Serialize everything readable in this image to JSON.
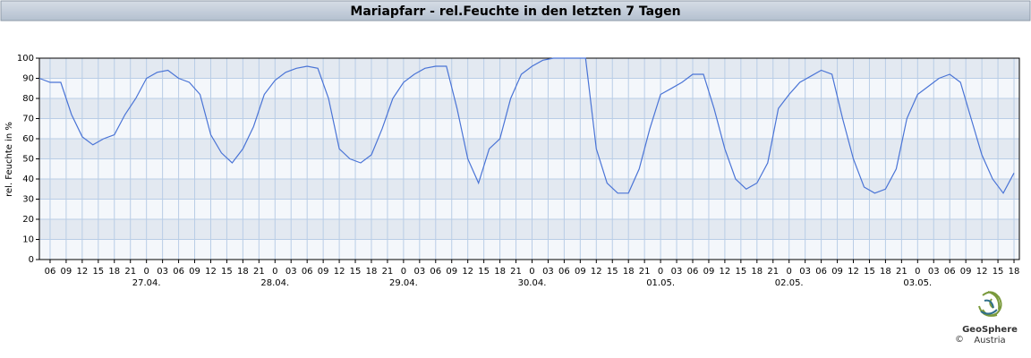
{
  "chart_data": {
    "type": "line",
    "title": "Mariapfarr - rel.Feuchte in den letzten 7 Tagen",
    "y_label": "rel. Feuchte in %",
    "x": [
      "26.04. 04:00",
      "26.04. 06:00",
      "26.04. 08:00",
      "26.04. 10:00",
      "26.04. 12:00",
      "26.04. 14:00",
      "26.04. 16:00",
      "26.04. 18:00",
      "26.04. 20:00",
      "26.04. 22:00",
      "27.04. 00:00",
      "27.04. 02:00",
      "27.04. 04:00",
      "27.04. 06:00",
      "27.04. 08:00",
      "27.04. 10:00",
      "27.04. 12:00",
      "27.04. 14:00",
      "27.04. 16:00",
      "27.04. 18:00",
      "27.04. 20:00",
      "27.04. 22:00",
      "28.04. 00:00",
      "28.04. 02:00",
      "28.04. 04:00",
      "28.04. 06:00",
      "28.04. 08:00",
      "28.04. 10:00",
      "28.04. 12:00",
      "28.04. 14:00",
      "28.04. 16:00",
      "28.04. 18:00",
      "28.04. 20:00",
      "28.04. 22:00",
      "29.04. 00:00",
      "29.04. 02:00",
      "29.04. 04:00",
      "29.04. 06:00",
      "29.04. 08:00",
      "29.04. 10:00",
      "29.04. 12:00",
      "29.04. 14:00",
      "29.04. 16:00",
      "29.04. 18:00",
      "29.04. 20:00",
      "29.04. 22:00",
      "30.04. 00:00",
      "30.04. 02:00",
      "30.04. 04:00",
      "30.04. 06:00",
      "30.04. 08:00",
      "30.04. 10:00",
      "30.04. 12:00",
      "30.04. 14:00",
      "30.04. 16:00",
      "30.04. 18:00",
      "30.04. 20:00",
      "30.04. 22:00",
      "01.05. 00:00",
      "01.05. 02:00",
      "01.05. 04:00",
      "01.05. 06:00",
      "01.05. 08:00",
      "01.05. 10:00",
      "01.05. 12:00",
      "01.05. 14:00",
      "01.05. 16:00",
      "01.05. 18:00",
      "01.05. 20:00",
      "01.05. 22:00",
      "02.05. 00:00",
      "02.05. 02:00",
      "02.05. 04:00",
      "02.05. 06:00",
      "02.05. 08:00",
      "02.05. 10:00",
      "02.05. 12:00",
      "02.05. 14:00",
      "02.05. 16:00",
      "02.05. 18:00",
      "02.05. 20:00",
      "02.05. 22:00",
      "03.05. 00:00",
      "03.05. 02:00",
      "03.05. 04:00",
      "03.05. 06:00",
      "03.05. 08:00",
      "03.05. 10:00",
      "03.05. 12:00",
      "03.05. 14:00",
      "03.05. 16:00",
      "03.05. 18:00"
    ],
    "series": [
      {
        "color": "#4a74d6",
        "values": [
          90,
          88,
          88,
          72,
          61,
          57,
          60,
          62,
          72,
          80,
          90,
          93,
          94,
          90,
          88,
          82,
          62,
          53,
          48,
          55,
          66,
          82,
          89,
          93,
          95,
          96,
          95,
          80,
          55,
          50,
          48,
          52,
          65,
          80,
          88,
          92,
          95,
          96,
          96,
          75,
          50,
          38,
          55,
          60,
          80,
          92,
          96,
          99,
          100,
          100,
          100,
          100,
          55,
          38,
          33,
          33,
          45,
          65,
          82,
          85,
          88,
          92,
          92,
          75,
          55,
          40,
          35,
          38,
          48,
          75,
          82,
          88,
          91,
          94,
          92,
          70,
          50,
          36,
          33,
          35,
          45,
          70,
          82,
          86,
          90,
          92,
          88,
          70,
          52,
          40,
          33,
          43
        ]
      }
    ],
    "xlim": [
      "26.04. 04:00",
      "03.05. 19:00"
    ],
    "ylim": [
      0,
      100
    ],
    "yticks": [
      0,
      10,
      20,
      30,
      40,
      50,
      60,
      70,
      80,
      90,
      100
    ],
    "grid": true,
    "xticks": [
      {
        "value": "26.04. 06:00",
        "label": "06"
      },
      {
        "value": "26.04. 09:00",
        "label": "09"
      },
      {
        "value": "26.04. 12:00",
        "label": "12"
      },
      {
        "value": "26.04. 15:00",
        "label": "15"
      },
      {
        "value": "26.04. 18:00",
        "label": "18"
      },
      {
        "value": "26.04. 21:00",
        "label": "21"
      },
      {
        "value": "27.04. 00:00",
        "label": "0"
      },
      {
        "value": "27.04. 03:00",
        "label": "03"
      },
      {
        "value": "27.04. 06:00",
        "label": "06"
      },
      {
        "value": "27.04. 09:00",
        "label": "09"
      },
      {
        "value": "27.04. 12:00",
        "label": "12"
      },
      {
        "value": "27.04. 15:00",
        "label": "15"
      },
      {
        "value": "27.04. 18:00",
        "label": "18"
      },
      {
        "value": "27.04. 21:00",
        "label": "21"
      },
      {
        "value": "28.04. 00:00",
        "label": "0"
      },
      {
        "value": "28.04. 03:00",
        "label": "03"
      },
      {
        "value": "28.04. 06:00",
        "label": "06"
      },
      {
        "value": "28.04. 09:00",
        "label": "09"
      },
      {
        "value": "28.04. 12:00",
        "label": "12"
      },
      {
        "value": "28.04. 15:00",
        "label": "15"
      },
      {
        "value": "28.04. 18:00",
        "label": "18"
      },
      {
        "value": "28.04. 21:00",
        "label": "21"
      },
      {
        "value": "29.04. 00:00",
        "label": "0"
      },
      {
        "value": "29.04. 03:00",
        "label": "03"
      },
      {
        "value": "29.04. 06:00",
        "label": "06"
      },
      {
        "value": "29.04. 09:00",
        "label": "09"
      },
      {
        "value": "29.04. 12:00",
        "label": "12"
      },
      {
        "value": "29.04. 15:00",
        "label": "15"
      },
      {
        "value": "29.04. 18:00",
        "label": "18"
      },
      {
        "value": "29.04. 21:00",
        "label": "21"
      },
      {
        "value": "30.04. 00:00",
        "label": "0"
      },
      {
        "value": "30.04. 03:00",
        "label": "03"
      },
      {
        "value": "30.04. 06:00",
        "label": "06"
      },
      {
        "value": "30.04. 09:00",
        "label": "09"
      },
      {
        "value": "30.04. 12:00",
        "label": "12"
      },
      {
        "value": "30.04. 15:00",
        "label": "15"
      },
      {
        "value": "30.04. 18:00",
        "label": "18"
      },
      {
        "value": "30.04. 21:00",
        "label": "21"
      },
      {
        "value": "01.05. 00:00",
        "label": "0"
      },
      {
        "value": "01.05. 03:00",
        "label": "03"
      },
      {
        "value": "01.05. 06:00",
        "label": "06"
      },
      {
        "value": "01.05. 09:00",
        "label": "09"
      },
      {
        "value": "01.05. 12:00",
        "label": "12"
      },
      {
        "value": "01.05. 15:00",
        "label": "15"
      },
      {
        "value": "01.05. 18:00",
        "label": "18"
      },
      {
        "value": "01.05. 21:00",
        "label": "21"
      },
      {
        "value": "02.05. 00:00",
        "label": "0"
      },
      {
        "value": "02.05. 03:00",
        "label": "03"
      },
      {
        "value": "02.05. 06:00",
        "label": "06"
      },
      {
        "value": "02.05. 09:00",
        "label": "09"
      },
      {
        "value": "02.05. 12:00",
        "label": "12"
      },
      {
        "value": "02.05. 15:00",
        "label": "15"
      },
      {
        "value": "02.05. 18:00",
        "label": "18"
      },
      {
        "value": "02.05. 21:00",
        "label": "21"
      },
      {
        "value": "03.05. 00:00",
        "label": "0"
      },
      {
        "value": "03.05. 03:00",
        "label": "03"
      },
      {
        "value": "03.05. 06:00",
        "label": "06"
      },
      {
        "value": "03.05. 09:00",
        "label": "09"
      },
      {
        "value": "03.05. 12:00",
        "label": "12"
      },
      {
        "value": "03.05. 15:00",
        "label": "15"
      },
      {
        "value": "03.05. 18:00",
        "label": "18"
      }
    ],
    "xdates": [
      {
        "value": "27.04. 00:00",
        "label": "27.04."
      },
      {
        "value": "28.04. 00:00",
        "label": "28.04."
      },
      {
        "value": "29.04. 00:00",
        "label": "29.04."
      },
      {
        "value": "30.04. 00:00",
        "label": "30.04."
      },
      {
        "value": "01.05. 00:00",
        "label": "01.05."
      },
      {
        "value": "02.05. 00:00",
        "label": "02.05."
      },
      {
        "value": "03.05. 00:00",
        "label": "03.05."
      }
    ]
  },
  "logo": {
    "name": "GeoSphere",
    "sub": "Austria",
    "copyright": "©"
  }
}
